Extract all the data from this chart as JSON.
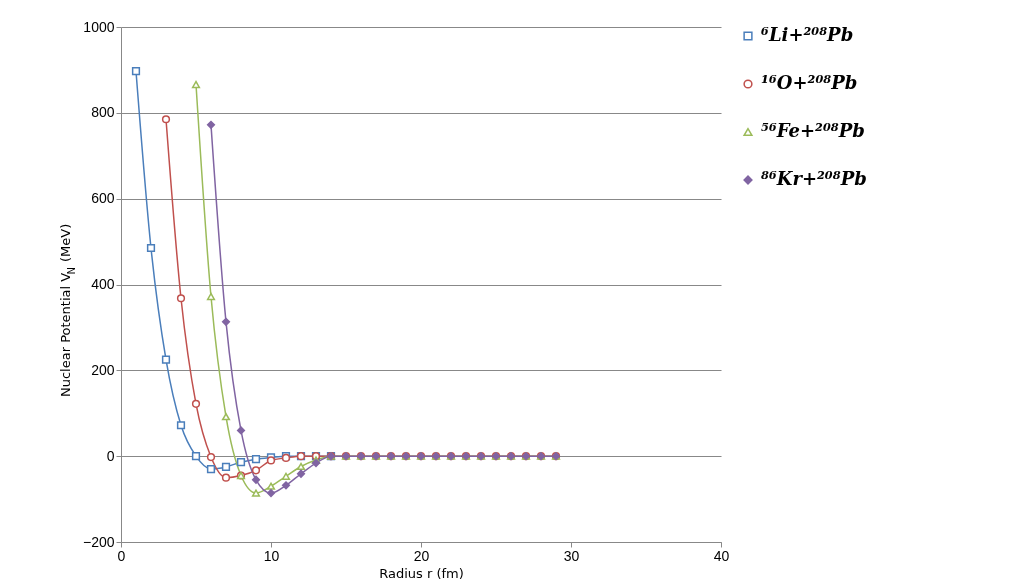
{
  "chart_data": {
    "type": "line",
    "xlabel": "Radius r (fm)",
    "ylabel": "Nuclear Potential V$_{N}$ (MeV)",
    "xlim": [
      0,
      40
    ],
    "xticks": [
      0,
      10,
      20,
      30,
      40
    ],
    "ylim": [
      -200,
      1000
    ],
    "yticks": [
      -200,
      0,
      200,
      400,
      600,
      800,
      1000
    ],
    "grid": "y",
    "legend": "right",
    "line_style": "solid",
    "series": [
      {
        "name": "⁶Li+²⁰⁸Pb",
        "color": "#4a7ebb",
        "marker": "square",
        "x": [
          1,
          2,
          3,
          4,
          5,
          6,
          7,
          8,
          9,
          10,
          11,
          12,
          13,
          14
        ],
        "values": [
          897,
          485,
          225,
          72,
          0,
          -30,
          -25,
          -14,
          -7,
          -3,
          0,
          0,
          0,
          0
        ]
      },
      {
        "name": "¹⁶O+²⁰⁸Pb",
        "color": "#c0504d",
        "marker": "circle",
        "x": [
          3,
          4,
          5,
          6,
          7,
          8,
          9,
          10,
          11,
          12,
          13,
          14,
          15,
          16,
          17,
          18,
          19,
          20,
          21,
          22,
          23,
          24,
          25,
          26,
          27,
          28,
          29
        ],
        "values": [
          785,
          368,
          122,
          -2,
          -50,
          -45,
          -33,
          -10,
          -4,
          0,
          0,
          0,
          0,
          0,
          0,
          0,
          0,
          0,
          0,
          0,
          0,
          0,
          0,
          0,
          0,
          0,
          0
        ]
      },
      {
        "name": "⁵⁶Fe+²⁰⁸Pb",
        "color": "#9bbb59",
        "marker": "triangle",
        "x": [
          5,
          6,
          7,
          8,
          9,
          10,
          11,
          12,
          13,
          14,
          15,
          16,
          17,
          18,
          19,
          20,
          21,
          22,
          23,
          24,
          25,
          26,
          27,
          28,
          29
        ],
        "values": [
          866,
          372,
          92,
          -45,
          -86,
          -70,
          -47,
          -24,
          -9,
          0,
          0,
          0,
          0,
          0,
          0,
          0,
          0,
          0,
          0,
          0,
          0,
          0,
          0,
          0,
          0
        ]
      },
      {
        "name": "⁸⁶Kr+²⁰⁸Pb",
        "color": "#8064a2",
        "marker": "diamond",
        "x": [
          6,
          7,
          8,
          9,
          10,
          11,
          12,
          13,
          14,
          15,
          16,
          17,
          18,
          19,
          20,
          21,
          22,
          23,
          24,
          25,
          26,
          27,
          28,
          29
        ],
        "values": [
          772,
          313,
          60,
          -55,
          -86,
          -68,
          -41,
          -16,
          0,
          0,
          0,
          0,
          0,
          0,
          0,
          0,
          0,
          0,
          0,
          0,
          0,
          0,
          0,
          0
        ]
      }
    ]
  }
}
